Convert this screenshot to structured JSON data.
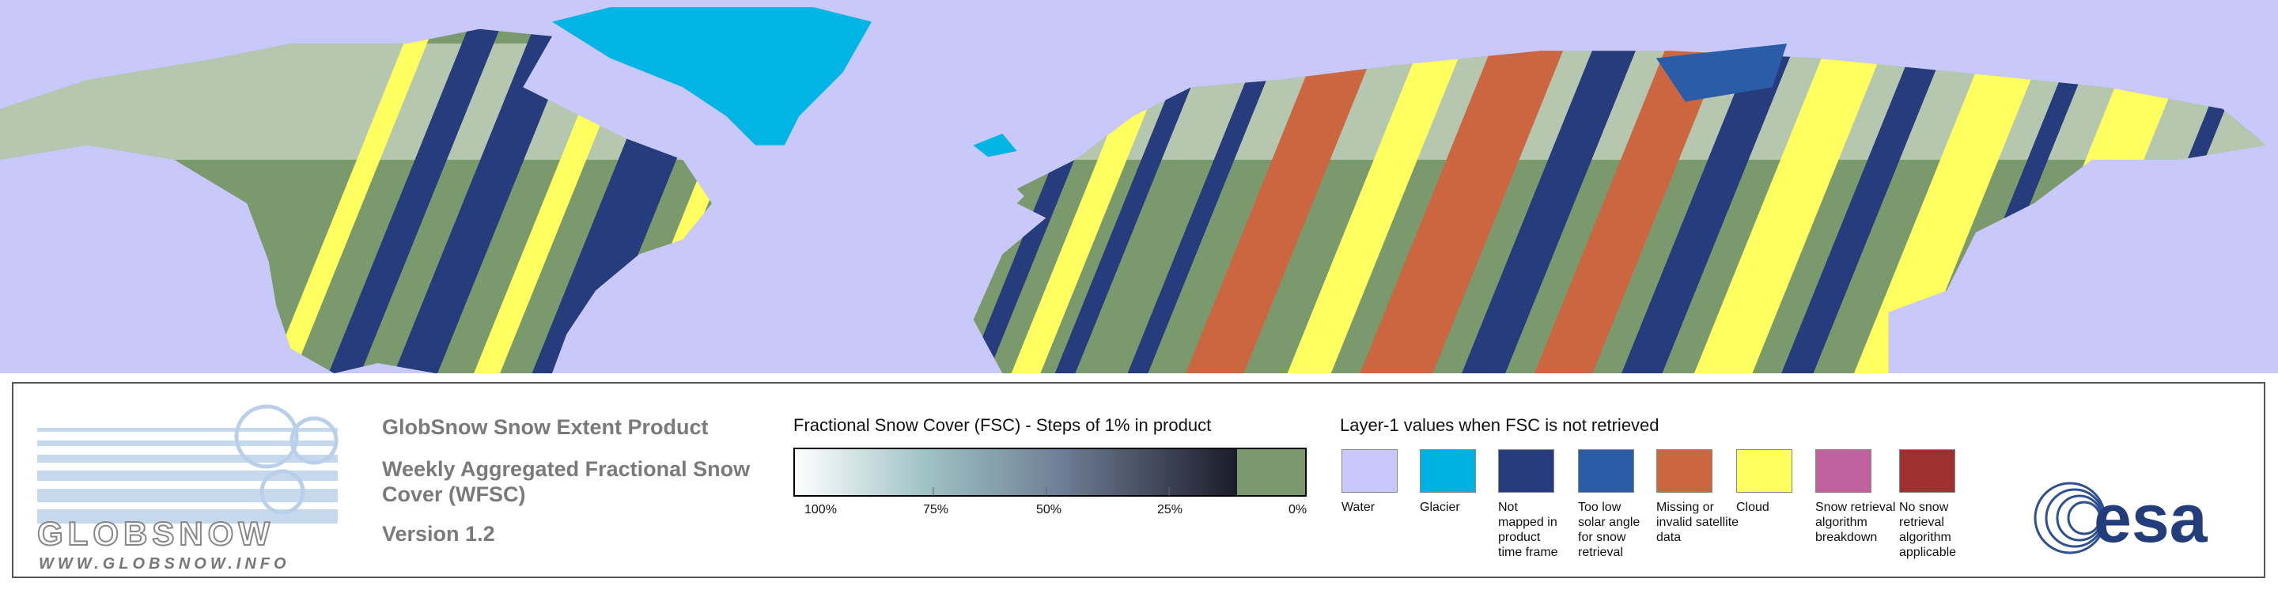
{
  "legend": {
    "product_title": "GlobSnow Snow Extent Product",
    "product_subtitle_lines": [
      "Weekly Aggregated Fractional Snow",
      "Cover (WFSC)"
    ],
    "version": "Version 1.2",
    "fsc_title": "Fractional Snow Cover (FSC) - Steps of 1% in product",
    "fsc_ticks": [
      "100%",
      "75%",
      "50%",
      "25%",
      "0%"
    ],
    "layer1_title": "Layer-1 values when FSC is not retrieved",
    "layer1_items": [
      {
        "color": "#c8c8fc",
        "label_lines": [
          "Water"
        ]
      },
      {
        "color": "#00b0e0",
        "label_lines": [
          "Glacier"
        ]
      },
      {
        "color": "#263c7c",
        "label_lines": [
          "Not",
          "mapped in",
          "product",
          "time frame"
        ]
      },
      {
        "color": "#2a5ca8",
        "label_lines": [
          "Too low",
          "solar angle",
          "for snow",
          "retrieval"
        ]
      },
      {
        "color": "#cc6640",
        "label_lines": [
          "Missing or",
          "invalid satellite",
          "data"
        ]
      },
      {
        "color": "#ffff60",
        "label_lines": [
          "Cloud"
        ]
      },
      {
        "color": "#c0609c",
        "label_lines": [
          "Snow retrieval",
          "algorithm",
          "breakdown"
        ]
      },
      {
        "color": "#a03030",
        "label_lines": [
          "No snow",
          "retrieval",
          "algorithm",
          "applicable"
        ]
      }
    ]
  },
  "logos": {
    "globsnow": "GLOBSNOW",
    "globsnow_url": "WWW.GLOBSNOW.INFO",
    "esa": "esa"
  }
}
